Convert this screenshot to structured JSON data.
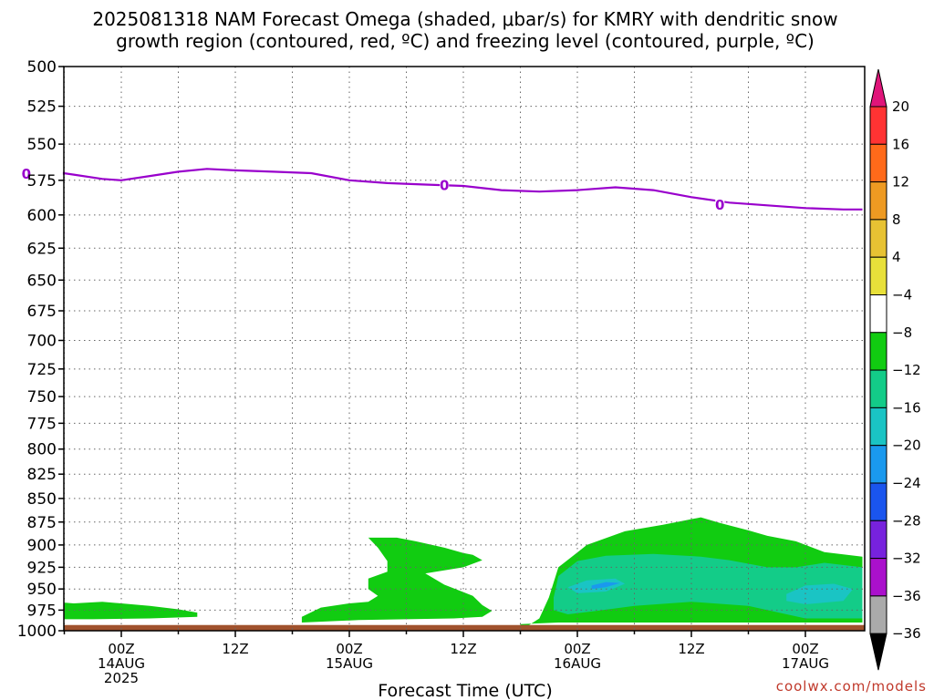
{
  "title_line1": "2025081318 NAM Forecast Omega (shaded, μbar/s) for KMRY with dendritic snow",
  "title_line2": "growth region (contoured, red, ºC) and freezing level (contoured, purple, ºC)",
  "xlabel": "Forecast Time (UTC)",
  "credit": "coolwx.com/models",
  "chart_data": {
    "type": "area",
    "y_axis": {
      "label": "",
      "ylim": [
        500,
        1000
      ],
      "inverted": true,
      "ticks": [
        500,
        525,
        550,
        575,
        600,
        625,
        650,
        675,
        700,
        725,
        750,
        775,
        800,
        825,
        850,
        875,
        900,
        925,
        950,
        975,
        1000
      ]
    },
    "x_axis": {
      "xlim_hours": [
        -15,
        55
      ],
      "ticks": [
        {
          "h": 0,
          "lines": [
            "00Z",
            "14AUG",
            "2025"
          ]
        },
        {
          "h": 12,
          "lines": [
            "12Z"
          ]
        },
        {
          "h": 24,
          "lines": [
            "00Z",
            "15AUG"
          ]
        },
        {
          "h": 36,
          "lines": [
            "12Z"
          ]
        },
        {
          "h": 48,
          "lines": [
            "00Z",
            "16AUG"
          ]
        },
        {
          "h": 60,
          "lines": [
            "12Z"
          ]
        },
        {
          "h": 72,
          "lines": [
            "00Z",
            "17AUG"
          ]
        }
      ]
    },
    "grid": true,
    "freezing_level": {
      "color": "#9900cc",
      "label": "0",
      "label_points": [
        {
          "h": -10,
          "p": 570
        },
        {
          "h": 34,
          "p": 578
        },
        {
          "h": 63,
          "p": 592
        }
      ],
      "points": [
        [
          -11,
          571
        ],
        [
          -8,
          570
        ],
        [
          -5,
          571
        ],
        [
          -2,
          574
        ],
        [
          0,
          575
        ],
        [
          3,
          572
        ],
        [
          6,
          569
        ],
        [
          9,
          567
        ],
        [
          12,
          568
        ],
        [
          16,
          569
        ],
        [
          20,
          570
        ],
        [
          24,
          575
        ],
        [
          28,
          577
        ],
        [
          32,
          578
        ],
        [
          36,
          579
        ],
        [
          40,
          582
        ],
        [
          44,
          583
        ],
        [
          48,
          582
        ],
        [
          52,
          580
        ],
        [
          56,
          582
        ],
        [
          60,
          587
        ],
        [
          64,
          591
        ],
        [
          68,
          593
        ],
        [
          72,
          595
        ],
        [
          76,
          596
        ],
        [
          78,
          596
        ]
      ]
    },
    "omega_levels": [
      -36,
      -32,
      -28,
      -24,
      -20,
      -16,
      -12,
      -8,
      -4,
      4,
      8,
      12,
      16,
      20
    ],
    "colorbar": [
      {
        "label": "20",
        "color": "#ff3333"
      },
      {
        "label": "16",
        "color": "#ff6a1a"
      },
      {
        "label": "12",
        "color": "#ee9a22"
      },
      {
        "label": "8",
        "color": "#e7c233"
      },
      {
        "label": "4",
        "color": "#e8e03a"
      },
      {
        "label": "−4",
        "color": "#ffffff"
      },
      {
        "label": "−8",
        "color": "#11cc11"
      },
      {
        "label": "−12",
        "color": "#13cc88"
      },
      {
        "label": "−16",
        "color": "#1ac4c4"
      },
      {
        "label": "−20",
        "color": "#1a99ee"
      },
      {
        "label": "−24",
        "color": "#1a55ee"
      },
      {
        "label": "−28",
        "color": "#7722dd"
      },
      {
        "label": "−32",
        "color": "#aa10cc"
      },
      {
        "label": "−36",
        "color": "#aaaaaa"
      }
    ],
    "colorbar_top_color": "#e0157a",
    "colorbar_bottom_color": "#000000",
    "omega_regions": [
      {
        "level": -8,
        "color": "#11cc11",
        "points": [
          [
            -15,
            1000
          ],
          [
            -15,
            990
          ],
          [
            -14,
            980
          ],
          [
            -13,
            972
          ],
          [
            -11,
            967
          ],
          [
            -8,
            966
          ],
          [
            -5,
            967
          ],
          [
            -2,
            965
          ],
          [
            0,
            967
          ],
          [
            3,
            970
          ],
          [
            6,
            974
          ],
          [
            8,
            978
          ],
          [
            8,
            983
          ],
          [
            3,
            985
          ],
          [
            -3,
            986
          ],
          [
            -9,
            986
          ],
          [
            -15,
            990
          ]
        ]
      },
      {
        "level": -12,
        "color": "#13cc88",
        "points": [
          [
            -13,
            986
          ],
          [
            -12,
            981
          ],
          [
            -11,
            986
          ]
        ]
      },
      {
        "level": -8,
        "color": "#11cc11",
        "points": [
          [
            19,
            1000
          ],
          [
            19,
            983
          ],
          [
            21,
            972
          ],
          [
            24,
            967
          ],
          [
            26,
            965
          ],
          [
            27,
            958
          ],
          [
            26,
            950
          ],
          [
            26,
            938
          ],
          [
            28,
            930
          ],
          [
            28,
            918
          ],
          [
            27,
            903
          ],
          [
            26,
            892
          ],
          [
            29,
            892
          ],
          [
            31,
            896
          ],
          [
            34,
            903
          ],
          [
            36,
            909
          ],
          [
            37,
            911
          ],
          [
            38,
            917
          ],
          [
            36,
            925
          ],
          [
            32,
            932
          ],
          [
            34,
            945
          ],
          [
            37,
            958
          ],
          [
            38,
            969
          ],
          [
            39,
            976
          ],
          [
            38,
            983
          ],
          [
            35,
            985
          ],
          [
            30,
            986
          ],
          [
            25,
            987
          ],
          [
            19,
            990
          ]
        ]
      },
      {
        "level": -8,
        "color": "#11cc11",
        "points": [
          [
            42,
            1000
          ],
          [
            44,
            985
          ],
          [
            45,
            960
          ],
          [
            46,
            925
          ],
          [
            49,
            900
          ],
          [
            53,
            885
          ],
          [
            57,
            878
          ],
          [
            61,
            870
          ],
          [
            63,
            876
          ],
          [
            66,
            884
          ],
          [
            68,
            890
          ],
          [
            71,
            896
          ],
          [
            74,
            908
          ],
          [
            78,
            913
          ],
          [
            78,
            990
          ],
          [
            72,
            990
          ],
          [
            62,
            990
          ],
          [
            52,
            990
          ],
          [
            46,
            990
          ],
          [
            42,
            992
          ]
        ]
      },
      {
        "level": -12,
        "color": "#13cc88",
        "points": [
          [
            45.5,
            960
          ],
          [
            46,
            935
          ],
          [
            48,
            918
          ],
          [
            51,
            912
          ],
          [
            56,
            910
          ],
          [
            61,
            913
          ],
          [
            64,
            917
          ],
          [
            68,
            925
          ],
          [
            71,
            925
          ],
          [
            74,
            920
          ],
          [
            78,
            925
          ],
          [
            78,
            985
          ],
          [
            72,
            985
          ],
          [
            66,
            970
          ],
          [
            60,
            965
          ],
          [
            54,
            970
          ],
          [
            50,
            976
          ],
          [
            47,
            980
          ],
          [
            45.5,
            975
          ]
        ]
      },
      {
        "level": -16,
        "color": "#1ac4c4",
        "points": [
          [
            47,
            948
          ],
          [
            49,
            940
          ],
          [
            52,
            938
          ],
          [
            53,
            944
          ],
          [
            51,
            953
          ],
          [
            48,
            955
          ]
        ]
      },
      {
        "level": -16,
        "color": "#1ac4c4",
        "points": [
          [
            70,
            956
          ],
          [
            72,
            946
          ],
          [
            75,
            944
          ],
          [
            77,
            950
          ],
          [
            76,
            964
          ],
          [
            72,
            968
          ],
          [
            70,
            964
          ]
        ]
      },
      {
        "level": -20,
        "color": "#1a99ee",
        "points": [
          [
            49.5,
            946
          ],
          [
            51,
            942
          ],
          [
            52.5,
            943
          ],
          [
            51,
            948
          ],
          [
            49.5,
            950
          ]
        ]
      }
    ],
    "surface": {
      "color": "#a0522d",
      "top_pressure": 993
    }
  }
}
